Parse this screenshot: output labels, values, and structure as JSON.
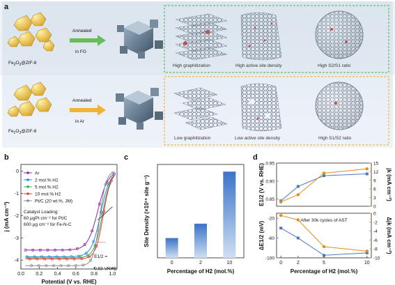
{
  "panel_a": {
    "label": "a",
    "top": {
      "precursor": "Fe2O3@ZIF-8",
      "arrow_line1": "Annealed",
      "arrow_line2": "in FG",
      "captions": [
        "High graphitization",
        "High active site density",
        "High S2/S1 ratio"
      ]
    },
    "bottom": {
      "precursor": "Fe2O3@ZIF-8",
      "arrow_line1": "Annealed",
      "arrow_line2": "in Ar",
      "captions": [
        "Low graphitization",
        "Low active site density",
        "High S1/S2 ratio"
      ]
    },
    "colors": {
      "top_box": "#4caf50",
      "bottom_box": "#f4a51c",
      "banner": "#dfe8f1"
    }
  },
  "chart_data": [
    {
      "panel": "b",
      "type": "line",
      "xlabel": "Potential (V vs. RHE)",
      "ylabel": "j (mA cm⁻²)",
      "xlim": [
        0.0,
        1.05
      ],
      "ylim": [
        -4.4,
        0.3
      ],
      "xticks": [
        "0.0",
        "0.2",
        "0.4",
        "0.6",
        "0.8",
        "1.0"
      ],
      "yticks": [
        "0",
        "-1",
        "-2",
        "-3",
        "-4"
      ],
      "legend": [
        "Ar",
        "2 mol.% H2",
        "5 mol.% H2",
        "10 mol.% H2",
        "Pt/C (20 wt.%, JM)"
      ],
      "annotation_loading": [
        "Catalyst Loading:",
        "60 μgPt cm⁻² for Pt/C",
        "600 μg cm⁻² for Fe-N-C"
      ],
      "annotation_e12": "E1/2 =",
      "annotation_value": "0.93 VRHE",
      "series": [
        {
          "name": "Ar",
          "color": "#8e24aa",
          "limit": -3.55,
          "e_half": 0.84,
          "slope": 0.055
        },
        {
          "name": "2 mol.% H2",
          "color": "#1e88e5",
          "limit": -3.85,
          "e_half": 0.87,
          "slope": 0.05
        },
        {
          "name": "5 mol.% H2",
          "color": "#43a047",
          "limit": -3.9,
          "e_half": 0.89,
          "slope": 0.045
        },
        {
          "name": "10 mol.% H2",
          "color": "#e53935",
          "limit": -3.95,
          "e_half": 0.9,
          "slope": 0.042
        },
        {
          "name": "Pt/C (20 wt.%, JM)",
          "color": "#8a8a8a",
          "limit": -4.25,
          "e_half": 0.86,
          "slope": 0.035
        }
      ]
    },
    {
      "panel": "c",
      "type": "bar",
      "xlabel": "Percentage of H2 (mol.%)",
      "ylabel": "Site Density (×10¹⁹ site g⁻¹)",
      "categories": [
        "0",
        "2",
        "10"
      ],
      "values": [
        5.5,
        9.5,
        24
      ],
      "ylim": [
        0,
        26
      ],
      "yticks": []
    },
    {
      "panel": "d",
      "type": "line",
      "xlabel": "Percentage of H2 (mol.%)",
      "x": [
        0,
        2,
        5,
        10
      ],
      "xticks": [
        "0",
        "2",
        "5",
        "10"
      ],
      "top": {
        "left_label": "E1/2 (V vs. RHE)",
        "right_label": "jk (mA cm⁻²)",
        "left_ylim": [
          0.83,
          0.95
        ],
        "left_ticks": [
          "0.95",
          "0.90",
          "0.85"
        ],
        "right_ylim": [
          0,
          15
        ],
        "right_ticks": [
          "15",
          "12",
          "9",
          "6",
          "3",
          "0"
        ],
        "e_half": [
          0.845,
          0.885,
          0.915,
          0.92
        ],
        "jk": [
          1.5,
          4,
          11.5,
          13
        ]
      },
      "bottom": {
        "annotation": "After 30k cycles of AST",
        "left_label": "ΔE1/2 (mV)",
        "right_label": "Δjk (mA cm⁻²)",
        "left_ylim": [
          -100,
          -10
        ],
        "left_ticks": [
          "-20",
          "-60",
          "-100"
        ],
        "right_ylim": [
          -10,
          0
        ],
        "right_ticks": [
          "0",
          "-2",
          "-4",
          "-6",
          "-8",
          "-10"
        ],
        "delta_e": [
          -40,
          -60,
          -95,
          -90
        ],
        "delta_jk": [
          -0.5,
          -1.5,
          -7.5,
          -8.5
        ]
      },
      "colors": {
        "blue": "#4a79c2",
        "orange": "#e58b1a"
      }
    }
  ],
  "panel_labels": {
    "b": "b",
    "c": "c",
    "d": "d"
  }
}
